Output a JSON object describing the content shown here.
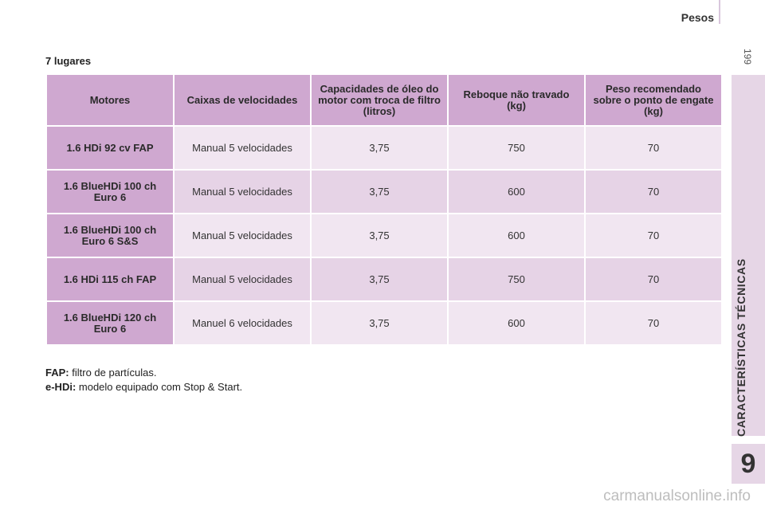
{
  "header": {
    "title": "Pesos"
  },
  "page_number": "199",
  "side_label": "CARACTERÍSTICAS TÉCNICAS",
  "chapter_number": "9",
  "section_heading": "7 lugares",
  "table": {
    "headers": [
      "Motores",
      "Caixas de velocidades",
      "Capacidades de óleo do motor com troca de filtro (litros)",
      "Reboque não travado (kg)",
      "Peso recomendado sobre o ponto de engate (kg)"
    ],
    "rows": [
      {
        "engine": "1.6 HDi 92 cv FAP",
        "gearbox": "Manual 5 velocidades",
        "oil": "3,75",
        "trailer": "750",
        "hitch": "70"
      },
      {
        "engine": "1.6 BlueHDi 100 ch Euro 6",
        "gearbox": "Manual 5 velocidades",
        "oil": "3,75",
        "trailer": "600",
        "hitch": "70"
      },
      {
        "engine": "1.6 BlueHDi 100 ch Euro 6 S&S",
        "gearbox": "Manual 5 velocidades",
        "oil": "3,75",
        "trailer": "600",
        "hitch": "70"
      },
      {
        "engine": "1.6 HDi 115 ch FAP",
        "gearbox": "Manual 5 velocidades",
        "oil": "3,75",
        "trailer": "750",
        "hitch": "70"
      },
      {
        "engine": "1.6 BlueHDi 120 ch Euro 6",
        "gearbox": "Manuel 6 velocidades",
        "oil": "3,75",
        "trailer": "600",
        "hitch": "70"
      }
    ]
  },
  "footnotes": [
    {
      "term": "FAP:",
      "text": " filtro de partículas."
    },
    {
      "term": "e-HDi:",
      "text": " modelo equipado com Stop & Start."
    }
  ],
  "watermark": "carmanualsonline.info",
  "colors": {
    "header_cell": "#cfa8d0",
    "row_light": "#f1e6f1",
    "row_dark": "#e6d3e6",
    "side_band": "#e6d6e6"
  }
}
